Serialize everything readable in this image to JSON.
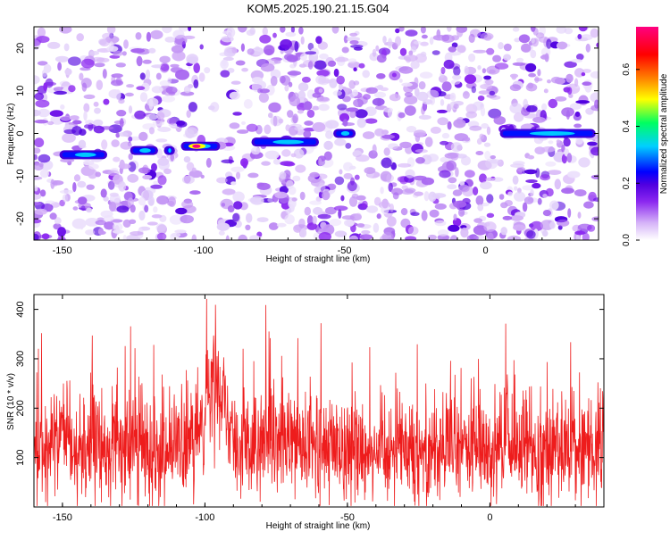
{
  "title": "KOM5.2025.190.21.15.G04",
  "chart_data": [
    {
      "type": "heatmap",
      "xlabel": "Height of straight line (km)",
      "ylabel": "Frequency (Hz)",
      "xlim": [
        -160,
        40
      ],
      "ylim": [
        -25,
        25
      ],
      "xticks": [
        -150,
        -100,
        -50,
        0
      ],
      "yticks": [
        20,
        10,
        0,
        -10,
        -20
      ],
      "colorbar": {
        "label": "Normalized spectral amplitude",
        "range": [
          0.0,
          0.75
        ],
        "ticks": [
          0.0,
          0.2,
          0.4,
          0.6
        ],
        "colormap": [
          "#ffffff",
          "#d6b4f8",
          "#8c28f0",
          "#5000e0",
          "#0000ff",
          "#00d0ff",
          "#00ff60",
          "#ffff00",
          "#ff8000",
          "#ff0000",
          "#ff0080"
        ]
      },
      "features": [
        {
          "x": [
            -150,
            -135
          ],
          "y": -5,
          "amp": 0.25
        },
        {
          "x": [
            -125,
            -117
          ],
          "y": -4,
          "amp": 0.2
        },
        {
          "x": [
            -113,
            -111
          ],
          "y": -4,
          "amp": 0.2
        },
        {
          "x": [
            -107,
            -95
          ],
          "y": -3,
          "amp": 0.72
        },
        {
          "x": [
            -82,
            -60
          ],
          "y": -2,
          "amp": 0.3
        },
        {
          "x": [
            -53,
            -47
          ],
          "y": 0,
          "amp": 0.25
        },
        {
          "x": [
            6,
            38
          ],
          "y": 0,
          "amp": 0.22
        }
      ]
    },
    {
      "type": "line",
      "xlabel": "Height of straight line (km)",
      "ylabel": "SNR (10 * v/v)",
      "xlim": [
        -160,
        40
      ],
      "ylim": [
        0,
        430
      ],
      "xticks": [
        -150,
        -100,
        -50,
        0
      ],
      "yticks": [
        100,
        200,
        300,
        400
      ],
      "color": "#ee1c1c",
      "series": [
        {
          "baseline": 120,
          "noise_sd": 55,
          "peak_region": [
            -100,
            -93
          ],
          "peak_max": 430
        }
      ]
    }
  ]
}
